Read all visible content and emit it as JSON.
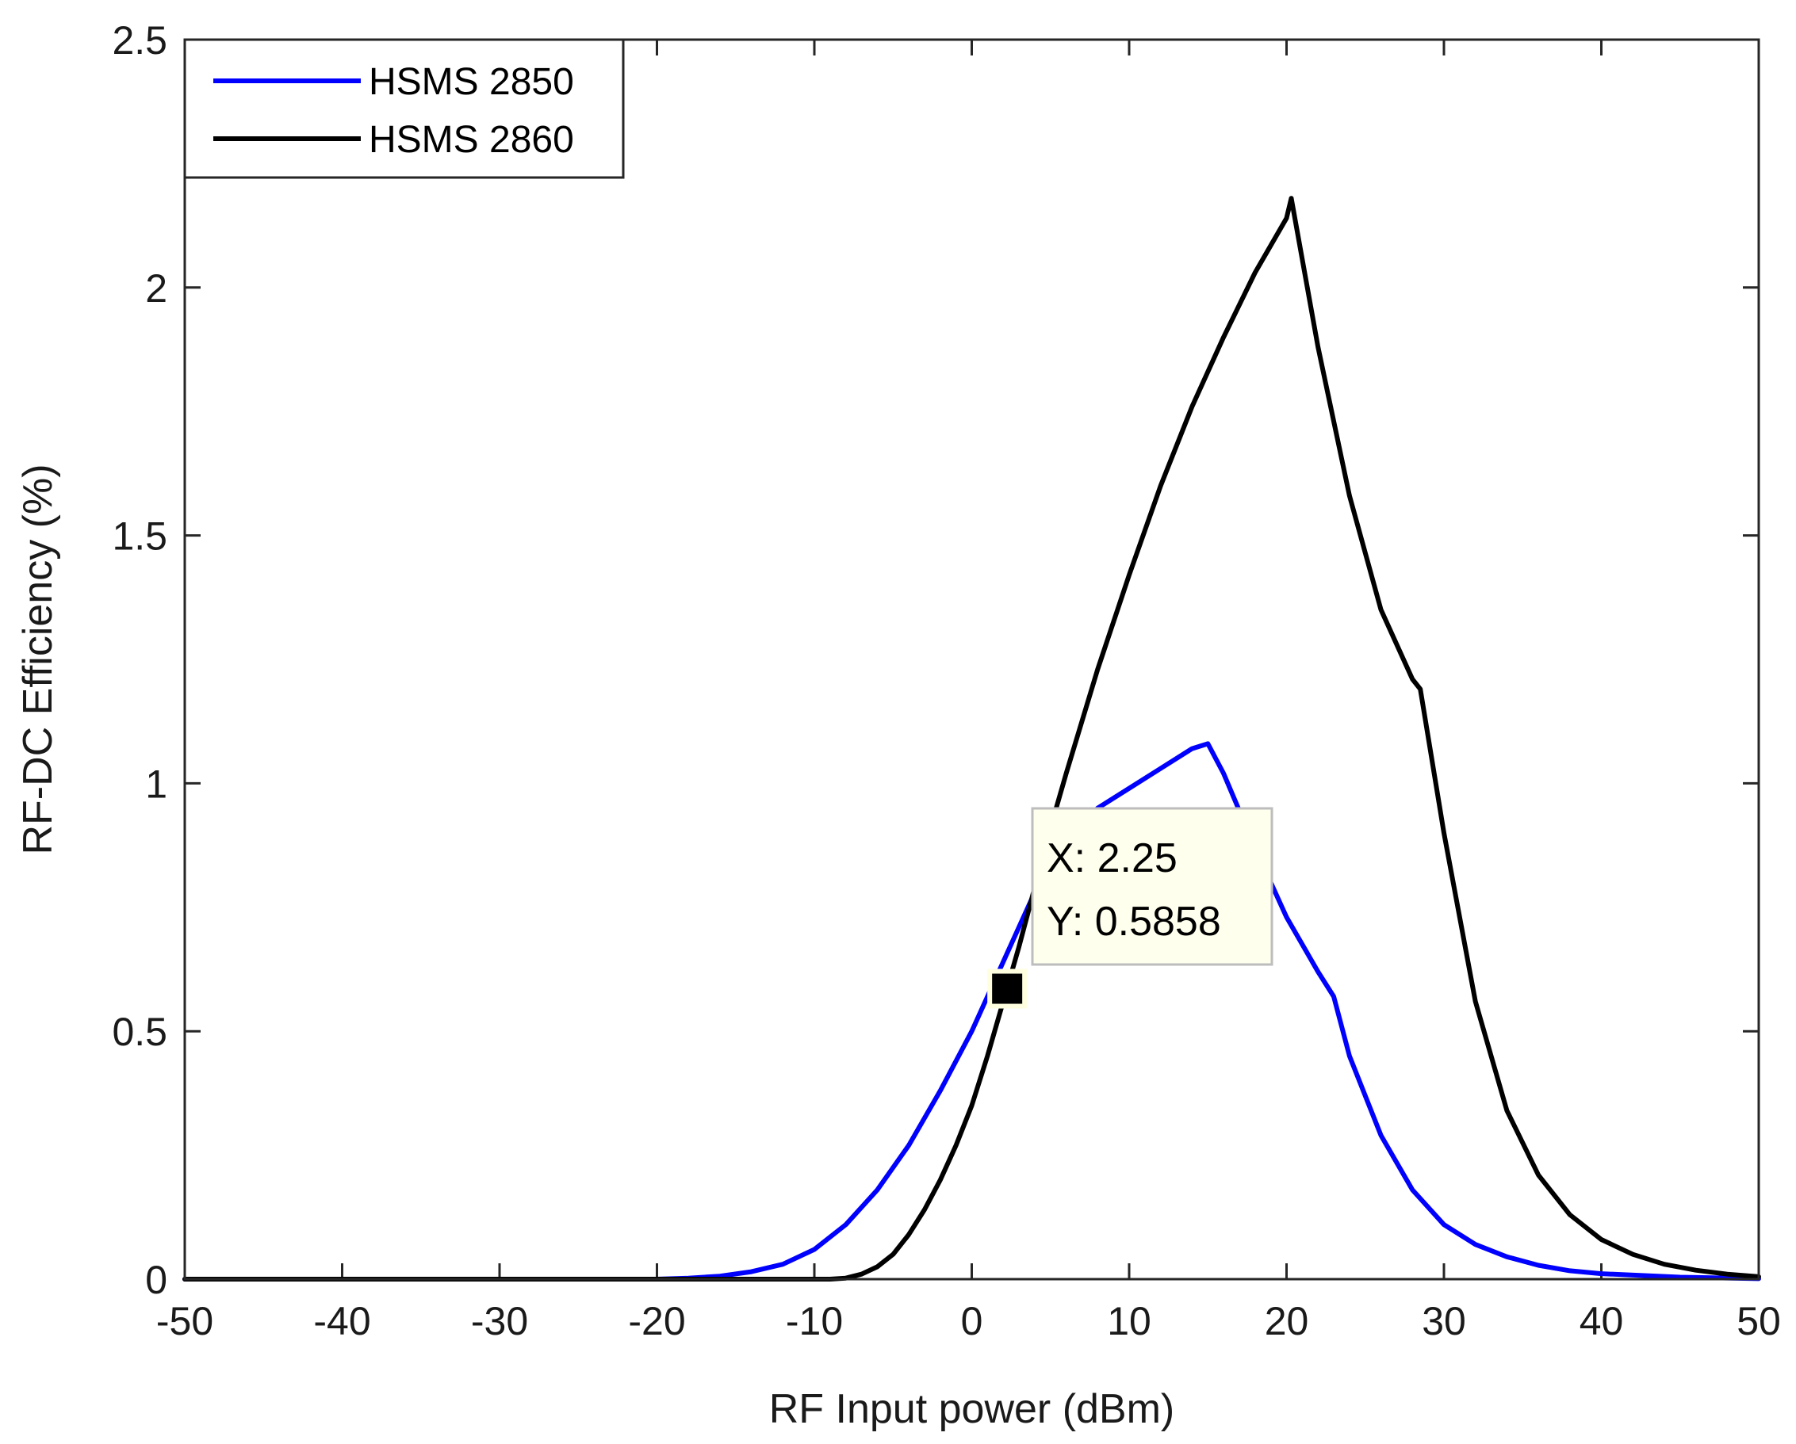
{
  "chart_data": {
    "type": "line",
    "title": "",
    "xlabel": "RF Input power (dBm)",
    "ylabel": "RF-DC Efficiency (%)",
    "xlim": [
      -50,
      50
    ],
    "ylim": [
      0,
      2.5
    ],
    "xticks": [
      -50,
      -40,
      -30,
      -20,
      -10,
      0,
      10,
      20,
      30,
      40,
      50
    ],
    "xtick_labels": [
      "-50",
      "-40",
      "-30",
      "-20",
      "-10",
      "0",
      "10",
      "20",
      "30",
      "40",
      "50"
    ],
    "yticks": [
      0,
      0.5,
      1,
      1.5,
      2,
      2.5
    ],
    "ytick_labels": [
      "0",
      "0.5",
      "1",
      "1.5",
      "2",
      "2.5"
    ],
    "grid": false,
    "legend_position": "top-left",
    "series": [
      {
        "name": "HSMS 2850",
        "color": "#0000ff",
        "x": [
          -50,
          -20,
          -18,
          -16,
          -14,
          -12,
          -10,
          -8,
          -6,
          -4,
          -2,
          0,
          2,
          4,
          6,
          8,
          10,
          12,
          14,
          15,
          16,
          18,
          20,
          22,
          23,
          24,
          26,
          28,
          30,
          32,
          34,
          36,
          38,
          40,
          45,
          50
        ],
        "y": [
          0,
          0,
          0.002,
          0.006,
          0.015,
          0.03,
          0.06,
          0.11,
          0.18,
          0.27,
          0.38,
          0.5,
          0.64,
          0.78,
          0.88,
          0.95,
          0.99,
          1.03,
          1.07,
          1.08,
          1.02,
          0.87,
          0.73,
          0.62,
          0.57,
          0.45,
          0.29,
          0.18,
          0.11,
          0.07,
          0.045,
          0.028,
          0.017,
          0.011,
          0.004,
          0.001
        ]
      },
      {
        "name": "HSMS 2860",
        "color": "#000000",
        "x": [
          -50,
          -9,
          -8,
          -7,
          -6,
          -5,
          -4,
          -3,
          -2,
          -1,
          0,
          1,
          2,
          3,
          4,
          5,
          6,
          8,
          10,
          12,
          14,
          16,
          18,
          20,
          20.3,
          22,
          24,
          26,
          28,
          28.5,
          30,
          32,
          34,
          36,
          38,
          40,
          42,
          44,
          46,
          48,
          50
        ],
        "y": [
          0,
          0,
          0.002,
          0.01,
          0.025,
          0.05,
          0.09,
          0.14,
          0.2,
          0.27,
          0.35,
          0.45,
          0.56,
          0.67,
          0.79,
          0.91,
          1.02,
          1.23,
          1.42,
          1.6,
          1.76,
          1.9,
          2.03,
          2.14,
          2.18,
          1.88,
          1.58,
          1.35,
          1.21,
          1.19,
          0.9,
          0.56,
          0.34,
          0.21,
          0.13,
          0.08,
          0.05,
          0.03,
          0.018,
          0.01,
          0.005
        ]
      }
    ],
    "annotation": {
      "x": 2.25,
      "y": 0.5858,
      "label_x": "X: 2.25",
      "label_y": "Y: 0.5858"
    }
  }
}
